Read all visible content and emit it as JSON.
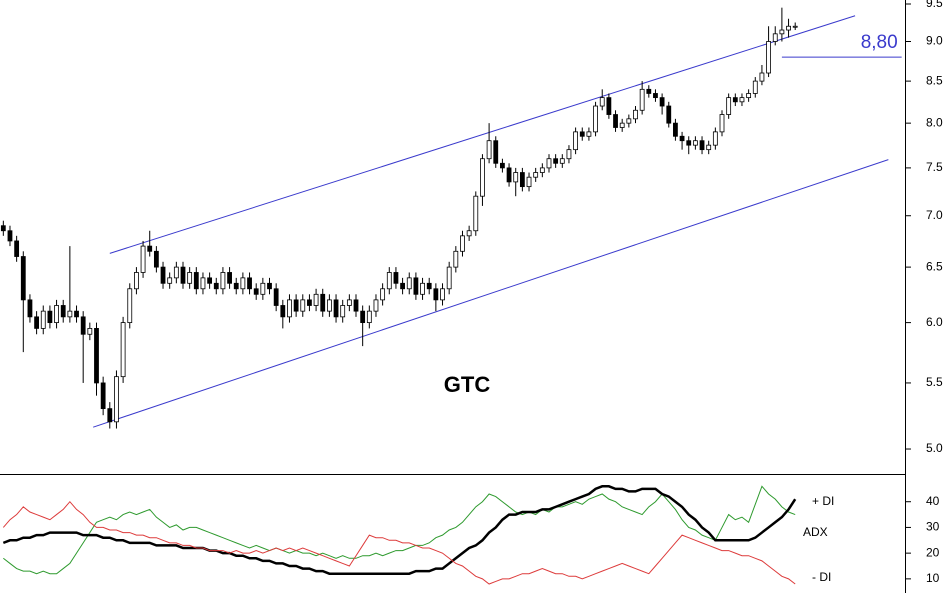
{
  "chart_data": [
    {
      "type": "candlestick",
      "title": "GTC",
      "log_scale": true,
      "xlim": [
        -0.5,
        135.5
      ],
      "ylim": [
        4.83,
        9.555
      ],
      "yticks": [
        {
          "value": 5,
          "label": "5.0"
        },
        5.5,
        {
          "value": 6,
          "label": "6.0"
        },
        6.5,
        {
          "value": 7,
          "label": "7.0"
        },
        7.5,
        {
          "value": 8,
          "label": "8.0"
        },
        8.5,
        {
          "value": 9,
          "label": "9.0"
        },
        9.5
      ],
      "up_color": "#ffffff",
      "down_color": "#000000",
      "trend_color": "#3a3acc",
      "open": [
        6.9,
        6.85,
        6.75,
        6.6,
        6.2,
        6.05,
        5.95,
        6.1,
        6.0,
        6.15,
        6.05,
        6.1,
        6.05,
        5.9,
        5.95,
        5.5,
        5.3,
        5.2,
        5.55,
        6.0,
        6.3,
        6.45,
        6.7,
        6.65,
        6.5,
        6.35,
        6.4,
        6.5,
        6.35,
        6.45,
        6.3,
        6.4,
        6.35,
        6.3,
        6.45,
        6.35,
        6.3,
        6.4,
        6.3,
        6.25,
        6.35,
        6.3,
        6.15,
        6.05,
        6.2,
        6.1,
        6.2,
        6.15,
        6.25,
        6.1,
        6.2,
        6.05,
        6.15,
        6.2,
        6.1,
        6.0,
        6.1,
        6.2,
        6.3,
        6.45,
        6.35,
        6.3,
        6.4,
        6.25,
        6.35,
        6.3,
        6.2,
        6.3,
        6.5,
        6.65,
        6.8,
        6.85,
        7.2,
        7.6,
        7.8,
        7.55,
        7.5,
        7.35,
        7.45,
        7.3,
        7.4,
        7.45,
        7.5,
        7.6,
        7.55,
        7.6,
        7.7,
        7.9,
        7.85,
        7.9,
        8.2,
        8.3,
        8.1,
        7.95,
        8.0,
        8.05,
        8.15,
        8.4,
        8.35,
        8.3,
        8.2,
        8.0,
        7.85,
        7.8,
        7.75,
        7.8,
        7.7,
        7.75,
        7.9,
        8.1,
        8.3,
        8.25,
        8.3,
        8.35,
        8.5,
        8.6,
        9.0,
        9.1,
        9.15,
        9.2
      ],
      "high": [
        6.95,
        6.9,
        6.8,
        6.65,
        6.25,
        6.1,
        6.15,
        6.15,
        6.2,
        6.2,
        6.7,
        6.15,
        6.1,
        6.0,
        6.0,
        5.55,
        5.35,
        5.6,
        6.05,
        6.35,
        6.5,
        6.75,
        6.85,
        6.7,
        6.55,
        6.45,
        6.55,
        6.55,
        6.5,
        6.5,
        6.45,
        6.45,
        6.4,
        6.5,
        6.5,
        6.4,
        6.45,
        6.45,
        6.35,
        6.4,
        6.4,
        6.35,
        6.2,
        6.25,
        6.25,
        6.25,
        6.25,
        6.3,
        6.3,
        6.25,
        6.25,
        6.2,
        6.25,
        6.25,
        6.15,
        6.15,
        6.25,
        6.35,
        6.5,
        6.5,
        6.4,
        6.45,
        6.45,
        6.4,
        6.4,
        6.35,
        6.35,
        6.55,
        6.7,
        6.85,
        6.9,
        7.25,
        7.65,
        8.0,
        7.85,
        7.6,
        7.55,
        7.5,
        7.5,
        7.45,
        7.5,
        7.55,
        7.65,
        7.65,
        7.65,
        7.75,
        7.95,
        7.95,
        7.95,
        8.25,
        8.4,
        8.35,
        8.15,
        8.05,
        8.1,
        8.2,
        8.5,
        8.45,
        8.4,
        8.35,
        8.25,
        8.05,
        7.9,
        7.85,
        7.85,
        7.85,
        7.8,
        7.95,
        8.15,
        8.35,
        8.35,
        8.35,
        8.4,
        8.55,
        8.7,
        9.2,
        9.2,
        9.45,
        9.3,
        9.25
      ],
      "low": [
        6.8,
        6.7,
        6.55,
        5.75,
        6.0,
        5.9,
        5.9,
        5.95,
        5.95,
        6.0,
        6.0,
        6.0,
        5.5,
        5.85,
        5.4,
        5.25,
        5.15,
        5.15,
        5.5,
        5.95,
        6.25,
        6.4,
        6.6,
        6.45,
        6.3,
        6.3,
        6.35,
        6.3,
        6.3,
        6.25,
        6.25,
        6.3,
        6.25,
        6.25,
        6.3,
        6.25,
        6.25,
        6.25,
        6.2,
        6.2,
        6.25,
        6.1,
        5.95,
        6.0,
        6.05,
        6.05,
        6.1,
        6.1,
        6.05,
        6.05,
        6.0,
        6.0,
        6.1,
        6.05,
        5.8,
        5.95,
        6.05,
        6.15,
        6.25,
        6.3,
        6.25,
        6.25,
        6.2,
        6.2,
        6.25,
        6.1,
        6.15,
        6.25,
        6.45,
        6.6,
        6.75,
        6.8,
        7.1,
        7.55,
        7.5,
        7.45,
        7.3,
        7.2,
        7.25,
        7.25,
        7.35,
        7.4,
        7.45,
        7.5,
        7.5,
        7.55,
        7.65,
        7.8,
        7.8,
        7.85,
        8.15,
        8.05,
        7.9,
        7.9,
        7.95,
        8.0,
        8.1,
        8.3,
        8.25,
        8.1,
        7.95,
        7.8,
        7.7,
        7.65,
        7.7,
        7.65,
        7.65,
        7.7,
        7.85,
        8.05,
        8.2,
        8.2,
        8.25,
        8.3,
        8.45,
        8.55,
        8.95,
        9.0,
        9.05,
        9.15
      ],
      "close": [
        6.85,
        6.75,
        6.6,
        6.2,
        6.05,
        5.95,
        6.1,
        6.0,
        6.15,
        6.05,
        6.1,
        6.05,
        5.9,
        5.95,
        5.5,
        5.3,
        5.2,
        5.55,
        6.0,
        6.3,
        6.45,
        6.7,
        6.65,
        6.5,
        6.35,
        6.4,
        6.5,
        6.35,
        6.45,
        6.3,
        6.4,
        6.35,
        6.3,
        6.45,
        6.35,
        6.3,
        6.4,
        6.3,
        6.25,
        6.35,
        6.3,
        6.15,
        6.05,
        6.2,
        6.1,
        6.2,
        6.15,
        6.25,
        6.1,
        6.2,
        6.05,
        6.15,
        6.2,
        6.1,
        6.0,
        6.1,
        6.2,
        6.3,
        6.45,
        6.35,
        6.3,
        6.4,
        6.25,
        6.35,
        6.3,
        6.2,
        6.3,
        6.5,
        6.65,
        6.8,
        6.85,
        7.2,
        7.6,
        7.8,
        7.55,
        7.5,
        7.35,
        7.45,
        7.3,
        7.4,
        7.45,
        7.5,
        7.6,
        7.55,
        7.6,
        7.7,
        7.9,
        7.85,
        7.9,
        8.2,
        8.3,
        8.1,
        7.95,
        8.0,
        8.05,
        8.15,
        8.4,
        8.35,
        8.3,
        8.2,
        8.0,
        7.85,
        7.8,
        7.75,
        7.8,
        7.7,
        7.75,
        7.9,
        8.1,
        8.3,
        8.25,
        8.3,
        8.35,
        8.5,
        8.6,
        9.0,
        9.1,
        9.15,
        9.2,
        9.2
      ],
      "trendlines": [
        {
          "x": [
            16,
            128
          ],
          "y": [
            6.63,
            9.34
          ]
        },
        {
          "x": [
            13.5,
            133
          ],
          "y": [
            5.16,
            7.59
          ]
        }
      ],
      "level": {
        "label": "8,80",
        "value": 8.8,
        "x_start": 117,
        "x_end": 135
      }
    },
    {
      "type": "line",
      "xlim": [
        -0.5,
        135.5
      ],
      "ylim": [
        4.5,
        50
      ],
      "yticks": [
        10,
        20,
        30,
        40
      ],
      "series": [
        {
          "name": "+ DI",
          "color": "#2e9a2e",
          "width": 1,
          "values": [
            18,
            16,
            14,
            13,
            13,
            12,
            13,
            12,
            12,
            14,
            16,
            20,
            24,
            28,
            32,
            33,
            34,
            33,
            35,
            36,
            35,
            36,
            37,
            34,
            32,
            30,
            31,
            29,
            30,
            30,
            29,
            28,
            27,
            26,
            25,
            24,
            23,
            22,
            23,
            22,
            21,
            22,
            21,
            20,
            21,
            20,
            20,
            19,
            20,
            19,
            18,
            19,
            18,
            18,
            19,
            19,
            20,
            19,
            20,
            21,
            21,
            22,
            23,
            23,
            24,
            26,
            27,
            29,
            30,
            32,
            35,
            38,
            40,
            43,
            42,
            40,
            38,
            36,
            35,
            36,
            35,
            37,
            36,
            38,
            38,
            39,
            40,
            39,
            41,
            42,
            43,
            41,
            40,
            38,
            37,
            36,
            35,
            38,
            40,
            43,
            40,
            37,
            33,
            30,
            29,
            27,
            26,
            25,
            30,
            35,
            33,
            34,
            32,
            39,
            46,
            43,
            41,
            38,
            36,
            35
          ]
        },
        {
          "name": "ADX",
          "color": "#000000",
          "width": 2.5,
          "values": [
            24,
            25,
            25,
            26,
            26,
            27,
            27,
            28,
            28,
            28,
            28,
            28,
            27,
            27,
            27,
            26,
            26,
            25,
            25,
            24,
            24,
            24,
            24,
            23,
            23,
            23,
            23,
            22,
            22,
            22,
            22,
            21,
            21,
            20,
            20,
            19,
            19,
            18,
            18,
            17,
            17,
            16,
            16,
            15,
            15,
            14,
            14,
            13,
            13,
            12,
            12,
            12,
            12,
            12,
            12,
            12,
            12,
            12,
            12,
            12,
            12,
            12,
            13,
            13,
            13,
            14,
            14,
            16,
            18,
            20,
            22,
            23,
            25,
            28,
            30,
            33,
            35,
            35,
            36,
            36,
            36,
            37,
            37,
            38,
            39,
            40,
            41,
            42,
            43,
            45,
            46,
            46,
            45,
            45,
            44,
            44,
            45,
            45,
            45,
            43,
            42,
            40,
            38,
            35,
            33,
            30,
            28,
            25,
            25,
            25,
            25,
            25,
            25,
            26,
            28,
            30,
            32,
            34,
            37,
            41
          ]
        },
        {
          "name": "- DI",
          "color": "#dd3b3b",
          "width": 1,
          "values": [
            30,
            33,
            35,
            38,
            36,
            35,
            34,
            33,
            35,
            37,
            40,
            37,
            35,
            32,
            30,
            30,
            29,
            29,
            28,
            28,
            27,
            27,
            26,
            26,
            25,
            24,
            24,
            23,
            23,
            22,
            22,
            21,
            21,
            21,
            20,
            21,
            20,
            20,
            21,
            20,
            21,
            22,
            21,
            22,
            21,
            22,
            21,
            20,
            19,
            18,
            17,
            16,
            15,
            19,
            23,
            27,
            26,
            26,
            25,
            25,
            24,
            24,
            23,
            22,
            22,
            21,
            20,
            18,
            16,
            15,
            13,
            11,
            10,
            8,
            9,
            10,
            10,
            11,
            12,
            12,
            13,
            14,
            13,
            12,
            12,
            11,
            11,
            10,
            11,
            12,
            13,
            14,
            15,
            16,
            15,
            14,
            13,
            12,
            15,
            18,
            21,
            24,
            27,
            26,
            25,
            24,
            23,
            22,
            21,
            21,
            20,
            19,
            19,
            18,
            17,
            15,
            13,
            11,
            10,
            8
          ]
        }
      ]
    }
  ]
}
